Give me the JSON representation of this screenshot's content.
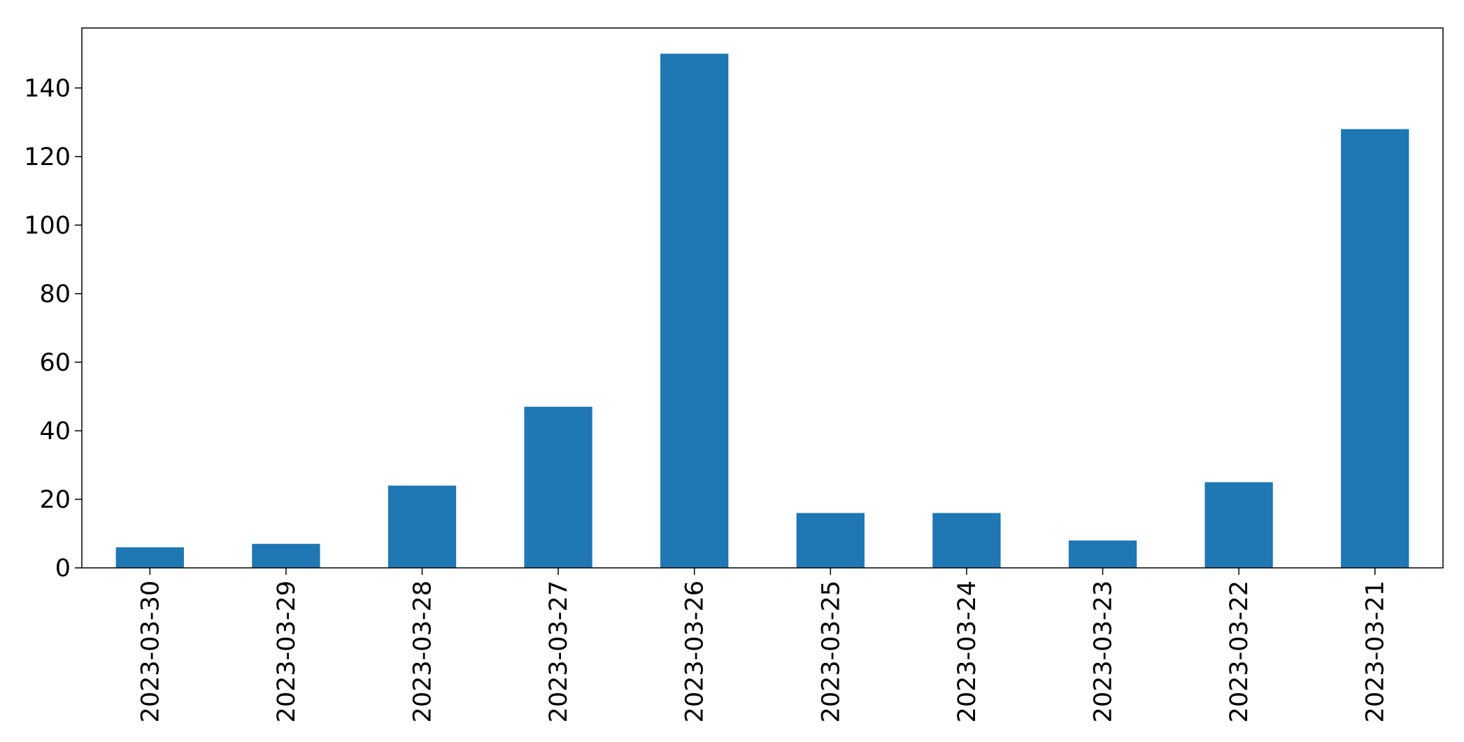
{
  "chart_data": {
    "type": "bar",
    "title": "",
    "xlabel": "",
    "ylabel": "",
    "categories": [
      "2023-03-30",
      "2023-03-29",
      "2023-03-28",
      "2023-03-27",
      "2023-03-26",
      "2023-03-25",
      "2023-03-24",
      "2023-03-23",
      "2023-03-22",
      "2023-03-21"
    ],
    "values": [
      6,
      7,
      24,
      47,
      150,
      16,
      16,
      8,
      25,
      128
    ],
    "ylim": [
      0,
      157.5
    ],
    "yticks": [
      0,
      20,
      40,
      60,
      80,
      100,
      120,
      140
    ],
    "grid": false,
    "legend": "none",
    "bar_color": "#1f77b4"
  }
}
